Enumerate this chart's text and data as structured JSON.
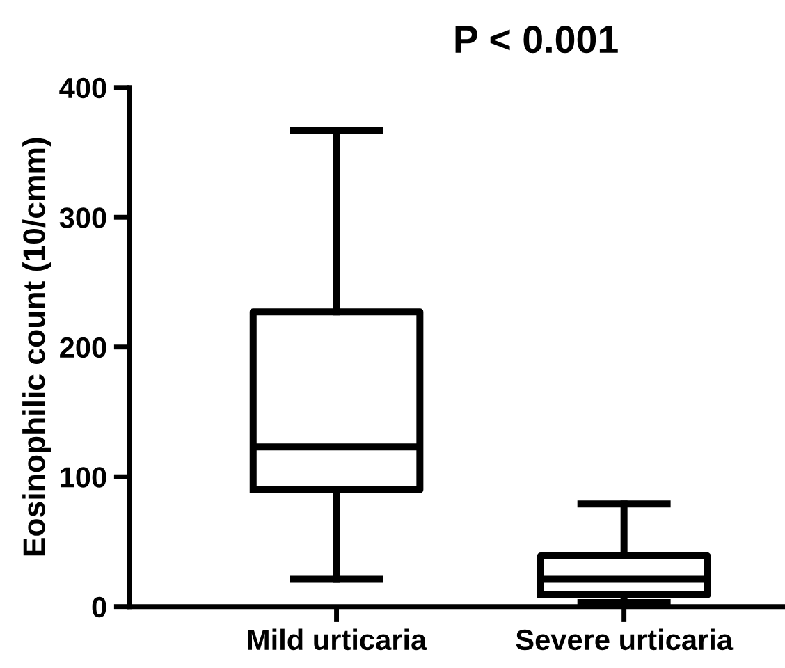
{
  "chart_data": {
    "type": "box",
    "title": "P < 0.001",
    "ylabel": "Eosinophilic count (10/cmm)",
    "categories": [
      "Mild urticaria",
      "Severe urticaria"
    ],
    "boxes": [
      {
        "low": 21,
        "q1": 90,
        "median": 123,
        "q3": 227,
        "high": 367
      },
      {
        "low": 3,
        "q1": 9,
        "median": 21,
        "q3": 39,
        "high": 79
      }
    ],
    "color": "#000000",
    "ylim": [
      0,
      400
    ],
    "yticks": [
      0,
      100,
      200,
      300,
      400
    ],
    "grid": false
  }
}
